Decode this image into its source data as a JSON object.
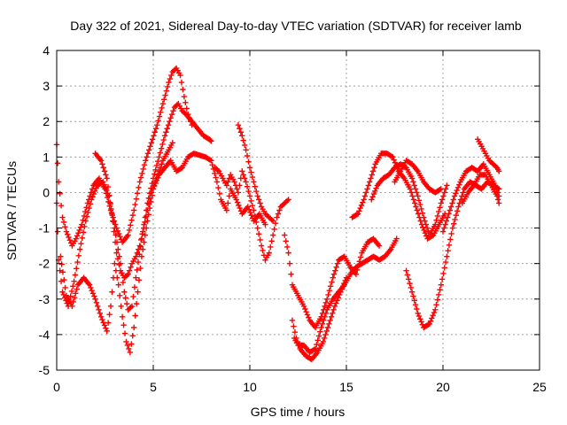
{
  "chart_data": {
    "type": "scatter",
    "title": "Day 322 of 2021, Sidereal Day-to-day VTEC variation (SDTVAR) for receiver lamb",
    "xlabel": "GPS time / hours",
    "ylabel": "SDTVAR / TECUs",
    "xlim": [
      0,
      25
    ],
    "ylim": [
      -5,
      4
    ],
    "xticks": [
      0,
      5,
      10,
      15,
      20,
      25
    ],
    "yticks": [
      -5,
      -4,
      -3,
      -2,
      -1,
      0,
      1,
      2,
      3,
      4
    ],
    "grid": true,
    "marker": "plus",
    "color": "#ff0000",
    "series": [
      {
        "x": [
          0.0,
          0.1,
          0.3,
          0.5,
          0.8,
          1.0,
          1.3,
          1.6,
          1.9,
          2.2,
          2.5,
          2.8,
          3.1,
          3.4,
          3.7,
          4.0,
          4.3,
          4.6,
          4.9,
          5.2,
          5.5,
          5.8,
          6.0,
          6.2,
          6.4,
          6.6,
          6.8,
          7.0
        ],
        "y": [
          1.35,
          0.3,
          -0.7,
          -1.1,
          -1.5,
          -1.3,
          -0.9,
          -0.3,
          0.2,
          0.4,
          0.1,
          -0.5,
          -1.0,
          -1.4,
          -1.2,
          -0.5,
          0.3,
          0.9,
          1.4,
          1.9,
          2.5,
          3.1,
          3.4,
          3.5,
          3.3,
          2.7,
          2.2,
          1.9
        ]
      },
      {
        "x": [
          0.0,
          0.1,
          0.3,
          0.6,
          0.9,
          1.2,
          1.5,
          1.8,
          2.1,
          2.4,
          2.7,
          3.0,
          3.3,
          3.5,
          3.7,
          3.9,
          4.1,
          4.4,
          4.7,
          5.0,
          5.3,
          5.6,
          5.9,
          6.1,
          6.3,
          6.5,
          6.7,
          7.0,
          7.3,
          7.6,
          7.9,
          8.0
        ],
        "y": [
          -0.3,
          -1.9,
          -2.8,
          -3.2,
          -2.5,
          -1.6,
          -0.8,
          -0.2,
          0.2,
          0.3,
          -0.1,
          -1.0,
          -2.0,
          -2.8,
          -3.3,
          -3.2,
          -2.4,
          -1.3,
          -0.3,
          0.4,
          1.0,
          1.6,
          2.1,
          2.4,
          2.5,
          2.3,
          2.2,
          2.0,
          1.8,
          1.6,
          1.5,
          1.45
        ]
      },
      {
        "x": [
          0.2,
          0.5,
          0.8,
          1.1,
          1.4,
          1.7,
          2.0,
          2.3,
          2.6,
          2.8,
          3.0,
          3.2,
          3.4,
          3.6,
          3.8,
          4.0,
          4.2,
          4.4,
          4.7,
          5.0,
          5.3,
          5.6,
          5.9,
          6.2,
          6.5,
          6.8,
          7.1,
          7.4,
          7.7,
          8.0,
          8.3,
          8.5,
          8.8,
          9.0,
          9.3,
          9.6,
          9.9,
          10.2,
          10.5,
          10.8
        ],
        "y": [
          -1.8,
          -2.9,
          -3.2,
          -2.6,
          -2.4,
          -2.6,
          -3.0,
          -3.5,
          -3.9,
          -3.2,
          -2.0,
          -2.6,
          -3.5,
          -4.2,
          -4.5,
          -3.8,
          -2.8,
          -1.8,
          -0.8,
          0.1,
          0.5,
          0.7,
          0.9,
          0.6,
          0.7,
          1.0,
          1.1,
          1.05,
          1.0,
          0.9,
          0.3,
          -0.2,
          -0.5,
          0.1,
          -0.2,
          -0.6,
          -0.4,
          -0.8,
          -0.6,
          -0.9
        ]
      },
      {
        "x": [
          2.0,
          2.3,
          2.6,
          2.9,
          3.1,
          3.3,
          3.5,
          3.7,
          3.9,
          4.1,
          4.3,
          4.5,
          4.7,
          4.9,
          5.1,
          5.3,
          5.5,
          5.8,
          6.0
        ],
        "y": [
          1.1,
          0.9,
          0.4,
          -0.8,
          -1.7,
          -2.2,
          -2.4,
          -2.3,
          -2.0,
          -1.8,
          -1.5,
          -1.0,
          -0.5,
          0.0,
          0.3,
          0.6,
          0.9,
          1.2,
          1.4
        ]
      },
      {
        "x": [
          8.2,
          8.4,
          8.6,
          8.8,
          9.0,
          9.2,
          9.4,
          9.6,
          9.8,
          10.0,
          10.2,
          10.4,
          10.6,
          10.8,
          11.0,
          11.2,
          11.4,
          11.6,
          11.8,
          12.0
        ],
        "y": [
          0.7,
          0.6,
          0.4,
          0.2,
          0.5,
          0.3,
          0.0,
          0.6,
          0.3,
          -0.1,
          -0.5,
          -1.0,
          -1.5,
          -1.9,
          -1.7,
          -1.2,
          -0.7,
          -0.4,
          -0.3,
          -0.2
        ]
      },
      {
        "x": [
          9.4,
          9.6,
          9.8,
          10.0,
          10.2,
          10.4,
          10.6,
          10.8,
          11.0,
          11.2
        ],
        "y": [
          1.9,
          1.6,
          1.2,
          0.7,
          0.3,
          -0.1,
          -0.4,
          -0.6,
          -0.7,
          -0.8
        ]
      },
      {
        "x": [
          11.8,
          12.0,
          12.2,
          12.5,
          12.8,
          13.1,
          13.4,
          13.7,
          14.0,
          14.3,
          14.6,
          14.9,
          15.2,
          15.5,
          15.8,
          16.1,
          16.4,
          16.7
        ],
        "y": [
          -1.2,
          -1.7,
          -2.6,
          -2.9,
          -3.2,
          -3.6,
          -3.8,
          -3.5,
          -3.0,
          -2.4,
          -1.9,
          -1.8,
          -2.1,
          -2.3,
          -1.7,
          -1.4,
          -1.3,
          -1.5
        ]
      },
      {
        "x": [
          12.2,
          12.4,
          12.6,
          12.9,
          13.2,
          13.5,
          13.8,
          14.1,
          14.4,
          14.7,
          15.0
        ],
        "y": [
          -3.6,
          -4.1,
          -4.4,
          -4.6,
          -4.7,
          -4.5,
          -4.2,
          -3.7,
          -3.2,
          -2.8,
          -2.4
        ]
      },
      {
        "x": [
          12.3,
          12.5,
          12.8,
          13.1,
          13.4,
          13.7,
          14.0,
          14.3,
          14.6,
          14.9,
          15.2,
          15.5,
          15.8,
          16.1,
          16.4,
          16.7,
          17.0,
          17.3,
          17.6
        ],
        "y": [
          -4.1,
          -4.3,
          -4.3,
          -4.5,
          -4.4,
          -3.8,
          -3.3,
          -3.0,
          -2.8,
          -2.6,
          -2.3,
          -2.1,
          -2.0,
          -1.9,
          -1.8,
          -1.9,
          -1.8,
          -1.6,
          -1.3
        ]
      },
      {
        "x": [
          15.3,
          15.6,
          15.9,
          16.2,
          16.5,
          16.8,
          17.1,
          17.4,
          17.7,
          18.0,
          18.3,
          18.6,
          18.9,
          19.2,
          19.5,
          19.8,
          20.1
        ],
        "y": [
          -0.7,
          -0.6,
          -0.2,
          0.3,
          0.8,
          1.1,
          1.1,
          1.0,
          0.6,
          0.4,
          0.1,
          -0.4,
          -0.9,
          -1.3,
          -1.2,
          -0.9,
          -0.6
        ]
      },
      {
        "x": [
          16.3,
          16.6,
          16.9,
          17.2,
          17.5,
          17.8,
          18.1,
          18.4,
          18.7,
          19.0,
          19.3,
          19.6,
          19.9,
          20.2
        ],
        "y": [
          -0.2,
          0.2,
          0.4,
          0.5,
          0.7,
          0.8,
          0.7,
          0.4,
          -0.1,
          -0.7,
          -1.2,
          -0.9,
          -0.3,
          0.2
        ]
      },
      {
        "x": [
          17.5,
          17.8,
          18.1,
          18.4,
          18.7,
          19.0,
          19.3,
          19.6,
          19.9
        ],
        "y": [
          0.3,
          0.6,
          0.9,
          0.8,
          0.6,
          0.3,
          0.1,
          0.0,
          0.1
        ]
      },
      {
        "x": [
          18.1,
          18.4,
          18.7,
          19.0,
          19.3,
          19.6,
          19.9,
          20.2,
          20.5,
          20.8,
          21.1,
          21.4,
          21.7,
          22.0,
          22.3,
          22.6,
          22.9
        ],
        "y": [
          -2.2,
          -2.8,
          -3.4,
          -3.8,
          -3.7,
          -3.3,
          -2.6,
          -1.8,
          -1.0,
          -0.4,
          0.1,
          0.3,
          0.2,
          0.1,
          0.3,
          0.2,
          0.1
        ]
      },
      {
        "x": [
          20.0,
          20.3,
          20.6,
          20.9,
          21.2,
          21.5,
          21.8,
          22.1,
          22.4,
          22.7,
          22.9
        ],
        "y": [
          -1.1,
          -0.6,
          -0.1,
          0.3,
          0.6,
          0.7,
          0.6,
          0.8,
          0.5,
          0.2,
          -0.1
        ]
      },
      {
        "x": [
          21.0,
          21.3,
          21.6,
          21.9,
          22.2,
          22.5,
          22.8,
          22.9
        ],
        "y": [
          -0.3,
          0.0,
          0.2,
          0.5,
          0.5,
          0.2,
          -0.1,
          -0.3
        ]
      },
      {
        "x": [
          21.8,
          22.0,
          22.2,
          22.4,
          22.6,
          22.8,
          22.9
        ],
        "y": [
          1.5,
          1.3,
          1.1,
          0.9,
          0.8,
          0.7,
          0.6
        ]
      }
    ]
  }
}
